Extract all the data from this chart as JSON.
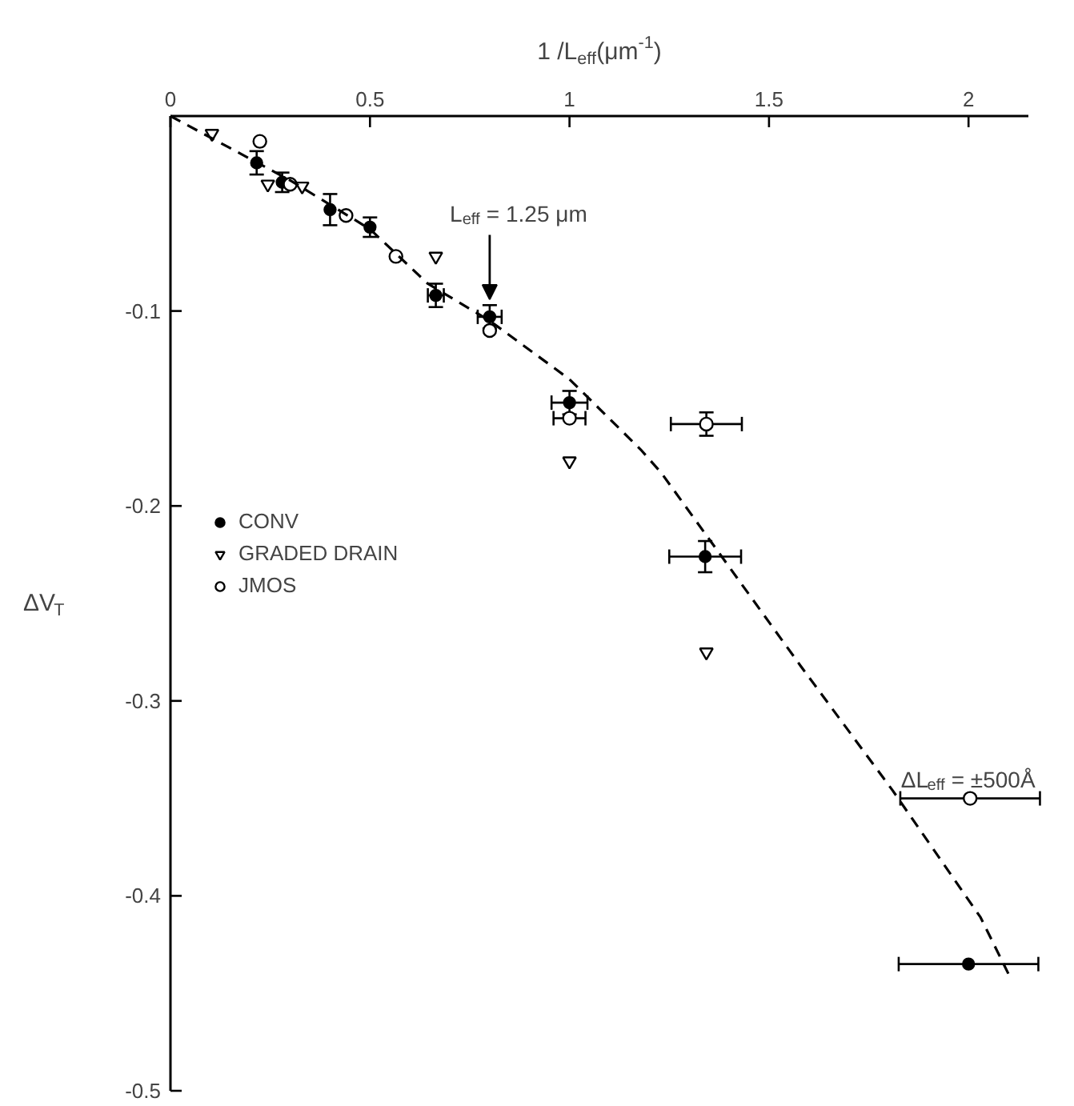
{
  "chart_data": {
    "type": "scatter",
    "xlabel": "1 /L$_{eff}$(μm$^{-1}$)",
    "ylabel": "ΔV$_{T}$",
    "xlim": [
      0,
      2.15
    ],
    "xticks": [
      0,
      0.5,
      1,
      1.5,
      2
    ],
    "ylim": [
      -0.5,
      0
    ],
    "yticks": [
      -0.5,
      -0.4,
      -0.3,
      -0.2,
      -0.1
    ],
    "grid": false,
    "legend": "left",
    "annotations": [
      {
        "text": "L$_{eff}$ = 1.25 μm",
        "x": 0.8,
        "y": -0.1
      },
      {
        "text": "ΔL$_{eff}$ = ±500Å",
        "x": 2.0,
        "y": -0.35
      }
    ],
    "series": [
      {
        "name": "CONV",
        "color": "#000000",
        "marker": "circle",
        "x": [
          0.216,
          0.28,
          0.4,
          0.5,
          0.665,
          0.8,
          1.0,
          1.34,
          2.0
        ],
        "values": [
          -0.024,
          -0.034,
          -0.048,
          -0.057,
          -0.092,
          -0.103,
          -0.147,
          -0.226,
          -0.435
        ],
        "errors": [
          0.006,
          0.005,
          0.008,
          0.005,
          0.006,
          0.006,
          0.006,
          0.008,
          null
        ],
        "xerrors": [
          null,
          null,
          null,
          null,
          0.02,
          0.03,
          0.045,
          0.09,
          0.175
        ]
      },
      {
        "name": "GRADED DRAIN",
        "color": "#000000",
        "marker": "triangle",
        "x": [
          0.104,
          0.244,
          0.33,
          0.665,
          1.0,
          1.343
        ],
        "values": [
          -0.009,
          -0.035,
          -0.036,
          -0.072,
          -0.177,
          -0.275
        ]
      },
      {
        "name": "JMOS",
        "color": "#000000",
        "marker": "circle",
        "x": [
          0.224,
          0.3,
          0.44,
          0.565,
          0.8,
          1.0,
          1.343,
          2.004
        ],
        "values": [
          -0.013,
          -0.035,
          -0.051,
          -0.072,
          -0.11,
          -0.155,
          -0.158,
          -0.35
        ],
        "errors": [
          null,
          null,
          null,
          null,
          null,
          null,
          0.006,
          null
        ],
        "xerrors": [
          null,
          null,
          null,
          null,
          null,
          0.04,
          0.089,
          0.175
        ]
      },
      {
        "type": "line",
        "color": "#000000",
        "line_style": "dashed",
        "x": [
          0,
          0.3,
          0.5,
          0.645,
          0.8,
          1.0,
          1.178,
          1.23,
          1.579,
          1.81,
          2.03,
          2.1
        ],
        "values": [
          0,
          -0.033,
          -0.058,
          -0.086,
          -0.105,
          -0.135,
          -0.171,
          -0.183,
          -0.282,
          -0.346,
          -0.411,
          -0.44
        ]
      }
    ]
  }
}
